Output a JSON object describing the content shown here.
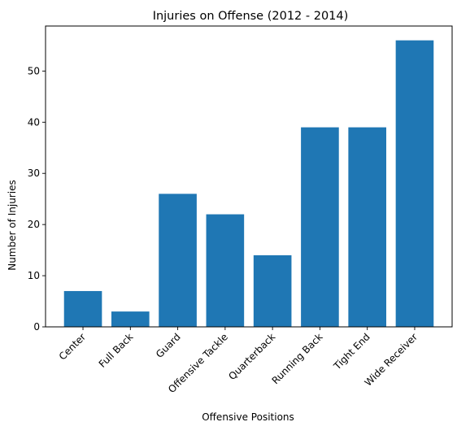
{
  "chart_data": {
    "type": "bar",
    "title": "Injuries on Offense (2012 - 2014)",
    "xlabel": "Offensive Positions",
    "ylabel": "Number of Injuries",
    "categories": [
      "Center",
      "Full Back",
      "Guard",
      "Offensive Tackle",
      "Quarterback",
      "Running Back",
      "Tight End",
      "Wide Receiver"
    ],
    "values": [
      7,
      3,
      26,
      22,
      14,
      39,
      39,
      56
    ],
    "ylim": [
      0,
      58.8
    ],
    "yticks": [
      0,
      10,
      20,
      30,
      40,
      50
    ],
    "bar_color": "#1f77b4",
    "grid": false,
    "legend": "none"
  }
}
